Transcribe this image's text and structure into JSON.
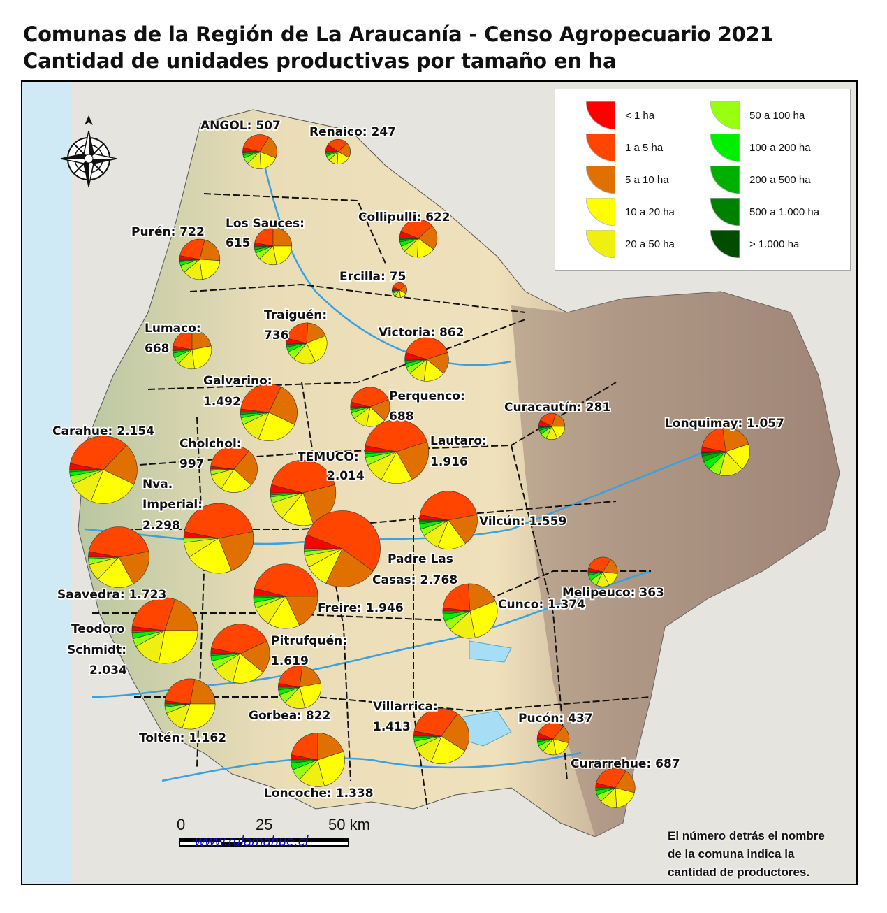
{
  "title": {
    "line1": "Comunas de la Región de La Araucanía - Censo Agropecuario 2021",
    "line2": "Cantidad de unidades productivas por tamaño en ha"
  },
  "legend": {
    "items": [
      {
        "label": "< 1 ha",
        "color": "#ff0000"
      },
      {
        "label": "1 a 5 ha",
        "color": "#ff4500"
      },
      {
        "label": "5 a 10 ha",
        "color": "#e07000"
      },
      {
        "label": "10 a 20 ha",
        "color": "#ffff00"
      },
      {
        "label": "20 a 50 ha",
        "color": "#f0f010"
      },
      {
        "label": "50 a 100 ha",
        "color": "#99ff11"
      },
      {
        "label": "100 a 200 ha",
        "color": "#00ee00"
      },
      {
        "label": "200 a 500 ha",
        "color": "#00b000"
      },
      {
        "label": "500 a 1.000 ha",
        "color": "#008000"
      },
      {
        "label": "> 1.000 ha",
        "color": "#004d00"
      }
    ]
  },
  "comunas": [
    {
      "name": "ANGOL",
      "label": [
        "ANGOL: 507"
      ],
      "producers": 507,
      "shares": [
        4,
        30,
        22,
        18,
        14,
        6,
        3,
        2,
        1,
        0
      ]
    },
    {
      "name": "Renaico",
      "label": [
        "Renaico: 247"
      ],
      "producers": 247,
      "shares": [
        10,
        28,
        20,
        18,
        12,
        6,
        3,
        2,
        1,
        0
      ]
    },
    {
      "name": "Collipulli",
      "label": [
        "Collipulli: 622"
      ],
      "producers": 622,
      "shares": [
        6,
        32,
        22,
        16,
        12,
        5,
        4,
        2,
        1,
        0
      ]
    },
    {
      "name": "Los Sauces",
      "label": [
        "Los Sauces:",
        "615"
      ],
      "producers": 615,
      "shares": [
        3,
        22,
        25,
        22,
        16,
        6,
        3,
        2,
        1,
        0
      ]
    },
    {
      "name": "Purén",
      "label": [
        "Purén: 722"
      ],
      "producers": 722,
      "shares": [
        3,
        26,
        22,
        22,
        16,
        6,
        3,
        1,
        1,
        0
      ]
    },
    {
      "name": "Ercilla",
      "label": [
        "Ercilla: 75"
      ],
      "producers": 75,
      "shares": [
        8,
        30,
        20,
        15,
        12,
        8,
        4,
        2,
        1,
        0
      ]
    },
    {
      "name": "Traiguén",
      "label": [
        "Traiguén:",
        "736"
      ],
      "producers": 736,
      "shares": [
        4,
        22,
        18,
        24,
        18,
        7,
        4,
        2,
        1,
        0
      ]
    },
    {
      "name": "Lumaco",
      "label": [
        "Lumaco:",
        "668"
      ],
      "producers": 668,
      "shares": [
        3,
        22,
        22,
        26,
        14,
        6,
        4,
        2,
        1,
        0
      ]
    },
    {
      "name": "Victoria",
      "label": [
        "Victoria: 862"
      ],
      "producers": 862,
      "shares": [
        5,
        40,
        16,
        16,
        12,
        5,
        3,
        2,
        1,
        0
      ]
    },
    {
      "name": "Galvarino",
      "label": [
        "Galvarino:",
        "1.492"
      ],
      "producers": 1492,
      "shares": [
        2,
        30,
        25,
        24,
        12,
        4,
        2,
        1,
        0,
        0
      ]
    },
    {
      "name": "Perquenco",
      "label": [
        "Perquenco:",
        "688"
      ],
      "producers": 688,
      "shares": [
        4,
        40,
        18,
        16,
        12,
        5,
        3,
        1,
        1,
        0
      ]
    },
    {
      "name": "Curacautín",
      "label": [
        "Curacautín: 281"
      ],
      "producers": 281,
      "shares": [
        8,
        22,
        20,
        18,
        14,
        8,
        5,
        3,
        1,
        1
      ]
    },
    {
      "name": "Lonquimay",
      "label": [
        "Lonquimay: 1.057"
      ],
      "producers": 1057,
      "shares": [
        3,
        20,
        22,
        18,
        16,
        8,
        6,
        4,
        2,
        1
      ]
    },
    {
      "name": "Carahue",
      "label": [
        "Carahue: 2.154"
      ],
      "producers": 2154,
      "shares": [
        3,
        34,
        20,
        24,
        12,
        4,
        2,
        1,
        0,
        0
      ]
    },
    {
      "name": "Cholchol",
      "label": [
        "Cholchol:",
        "997"
      ],
      "producers": 997,
      "shares": [
        2,
        34,
        26,
        22,
        12,
        3,
        1,
        0,
        0,
        0
      ]
    },
    {
      "name": "Lautaro",
      "label": [
        "Lautaro:",
        "1.916"
      ],
      "producers": 1916,
      "shares": [
        3,
        42,
        22,
        16,
        10,
        4,
        2,
        1,
        0,
        0
      ]
    },
    {
      "name": "Temuco",
      "label": [
        "TEMUCO:",
        "2.014"
      ],
      "producers": 2014,
      "shares": [
        4,
        42,
        24,
        16,
        9,
        3,
        1,
        1,
        0,
        0
      ]
    },
    {
      "name": "Nueva Imperial",
      "label": [
        "Nva.",
        "Imperial:",
        "2.298"
      ],
      "producers": 2298,
      "shares": [
        3,
        44,
        22,
        22,
        7,
        2,
        0,
        0,
        0,
        0
      ]
    },
    {
      "name": "Vilcún",
      "label": [
        "Vilcún: 1.559"
      ],
      "producers": 1559,
      "shares": [
        3,
        44,
        18,
        16,
        10,
        4,
        3,
        1,
        1,
        0
      ]
    },
    {
      "name": "Padre Las Casas",
      "label": [
        "Padre Las",
        "Casas: 2.768"
      ],
      "producers": 2768,
      "shares": [
        6,
        54,
        22,
        10,
        5,
        2,
        1,
        0,
        0,
        0
      ]
    },
    {
      "name": "Saavedra",
      "label": [
        "Saavedra: 1.723"
      ],
      "producers": 1723,
      "shares": [
        3,
        44,
        20,
        20,
        9,
        3,
        1,
        0,
        0,
        0
      ]
    },
    {
      "name": "Melipeuco",
      "label": [
        "Melipeuco: 363"
      ],
      "producers": 363,
      "shares": [
        4,
        30,
        18,
        16,
        14,
        8,
        6,
        3,
        1,
        0
      ]
    },
    {
      "name": "Freire",
      "label": [
        "Freire: 1.946"
      ],
      "producers": 1946,
      "shares": [
        4,
        46,
        18,
        16,
        10,
        3,
        2,
        1,
        0,
        0
      ]
    },
    {
      "name": "Cunco",
      "label": [
        "Cunco: 1.374"
      ],
      "producers": 1374,
      "shares": [
        2,
        22,
        20,
        28,
        16,
        6,
        4,
        2,
        0,
        0
      ]
    },
    {
      "name": "Teodoro Schmidt",
      "label": [
        "Teodoro",
        "Schmidt:",
        "2.034"
      ],
      "producers": 2034,
      "shares": [
        2,
        28,
        20,
        28,
        14,
        4,
        3,
        1,
        0,
        0
      ]
    },
    {
      "name": "Pitrufquén",
      "label": [
        "Pitrufquén:",
        "1.619"
      ],
      "producers": 1619,
      "shares": [
        3,
        40,
        18,
        18,
        12,
        5,
        3,
        1,
        0,
        0
      ]
    },
    {
      "name": "Gorbea",
      "label": [
        "Gorbea: 822"
      ],
      "producers": 822,
      "shares": [
        3,
        24,
        20,
        24,
        16,
        7,
        4,
        2,
        0,
        0
      ]
    },
    {
      "name": "Toltén",
      "label": [
        "Toltén: 1.162"
      ],
      "producers": 1162,
      "shares": [
        2,
        26,
        22,
        30,
        14,
        4,
        1,
        1,
        0,
        0
      ]
    },
    {
      "name": "Villarrica",
      "label": [
        "Villarrica:",
        "1.413"
      ],
      "producers": 1413,
      "shares": [
        3,
        32,
        24,
        22,
        12,
        4,
        2,
        1,
        0,
        0
      ]
    },
    {
      "name": "Pucón",
      "label": [
        "Pucón: 437"
      ],
      "producers": 437,
      "shares": [
        6,
        30,
        18,
        18,
        14,
        7,
        4,
        2,
        1,
        0
      ]
    },
    {
      "name": "Loncoche",
      "label": [
        "Loncoche: 1.338"
      ],
      "producers": 1338,
      "shares": [
        3,
        22,
        20,
        26,
        16,
        7,
        4,
        2,
        0,
        0
      ]
    },
    {
      "name": "Curarrehue",
      "label": [
        "Curarrehue: 687"
      ],
      "producers": 687,
      "shares": [
        4,
        30,
        20,
        20,
        14,
        6,
        4,
        2,
        0,
        0
      ]
    }
  ],
  "scale_bar": {
    "ticks": [
      "0",
      "25",
      "50 km"
    ]
  },
  "credit": "www.rulamahue.cl",
  "note": [
    "El número detrás el nombre",
    "de la comuna indica la",
    "cantidad de productores."
  ],
  "compass": "compass-rose-icon"
}
